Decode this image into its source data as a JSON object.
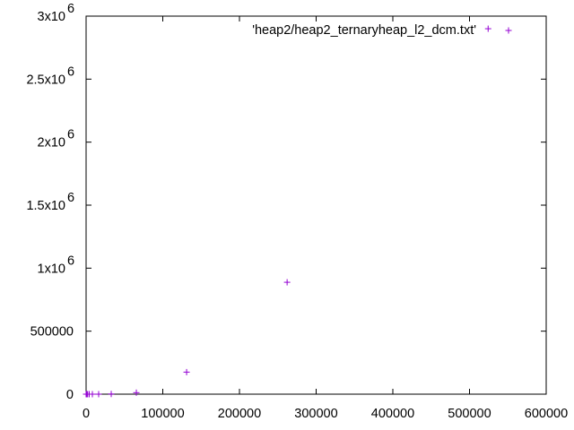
{
  "chart_data": {
    "type": "scatter",
    "title": "",
    "xlabel": "",
    "ylabel": "",
    "xlim": [
      0,
      600000
    ],
    "ylim": [
      0,
      3000000
    ],
    "grid": false,
    "legend_position": "top-right",
    "series": [
      {
        "name": "'heap2/heap2_ternaryheap_l2_dcm.txt'",
        "color": "#9400d3",
        "marker": "plus",
        "points": [
          [
            1,
            0
          ],
          [
            2,
            0
          ],
          [
            4,
            0
          ],
          [
            8,
            0
          ],
          [
            16,
            0
          ],
          [
            32,
            0
          ],
          [
            64,
            0
          ],
          [
            128,
            0
          ],
          [
            256,
            0
          ],
          [
            512,
            0
          ],
          [
            1024,
            0
          ],
          [
            2048,
            0
          ],
          [
            4096,
            0
          ],
          [
            8192,
            0
          ],
          [
            16384,
            200
          ],
          [
            32768,
            1500
          ],
          [
            65536,
            12000
          ],
          [
            131072,
            175000
          ],
          [
            262144,
            888000
          ],
          [
            524288,
            2900000
          ]
        ]
      }
    ],
    "x_ticks": [
      {
        "value": 0,
        "label": "0"
      },
      {
        "value": 100000,
        "label": "100000"
      },
      {
        "value": 200000,
        "label": "200000"
      },
      {
        "value": 300000,
        "label": "300000"
      },
      {
        "value": 400000,
        "label": "400000"
      },
      {
        "value": 500000,
        "label": "500000"
      },
      {
        "value": 600000,
        "label": "600000"
      }
    ],
    "y_ticks": [
      {
        "value": 0,
        "label": "0",
        "exp": ""
      },
      {
        "value": 500000,
        "label": "500000",
        "exp": ""
      },
      {
        "value": 1000000,
        "label": "1x10",
        "exp": "6"
      },
      {
        "value": 1500000,
        "label": "1.5x10",
        "exp": "6"
      },
      {
        "value": 2000000,
        "label": "2x10",
        "exp": "6"
      },
      {
        "value": 2500000,
        "label": "2.5x10",
        "exp": "6"
      },
      {
        "value": 3000000,
        "label": "3x10",
        "exp": "6"
      }
    ]
  }
}
